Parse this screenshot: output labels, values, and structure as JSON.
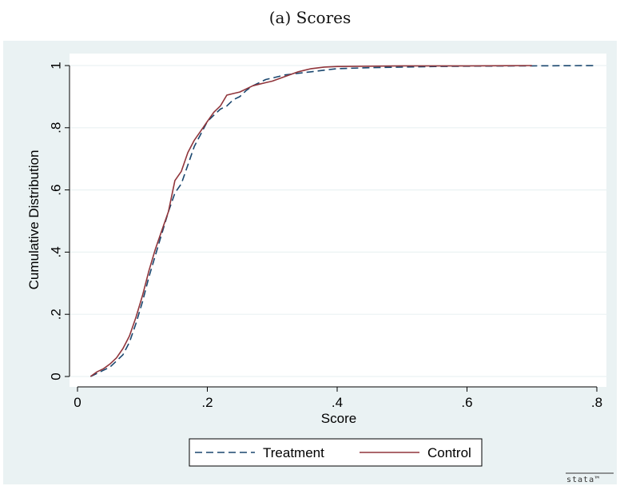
{
  "caption": "(a) Scores",
  "chart_data": {
    "type": "line",
    "xlabel": "Score",
    "ylabel": "Cumulative Distribution",
    "xlim": [
      0,
      0.8
    ],
    "ylim": [
      0,
      1
    ],
    "x_ticks": [
      0,
      0.2,
      0.4,
      0.6,
      0.8
    ],
    "x_tick_labels": [
      "0",
      ".2",
      ".4",
      ".6",
      ".8"
    ],
    "y_ticks": [
      0,
      0.2,
      0.4,
      0.6,
      0.8,
      1
    ],
    "y_tick_labels": [
      "0",
      ".2",
      ".4",
      ".6",
      ".8",
      "1"
    ],
    "grid": "horizontal",
    "legend_position": "bottom",
    "series": [
      {
        "name": "Treatment",
        "color": "#1a476f",
        "style": "dashed",
        "x": [
          0.02,
          0.03,
          0.04,
          0.05,
          0.06,
          0.07,
          0.08,
          0.09,
          0.1,
          0.11,
          0.12,
          0.13,
          0.14,
          0.15,
          0.16,
          0.17,
          0.18,
          0.19,
          0.2,
          0.21,
          0.22,
          0.23,
          0.24,
          0.25,
          0.26,
          0.27,
          0.28,
          0.29,
          0.3,
          0.32,
          0.34,
          0.36,
          0.38,
          0.4,
          0.45,
          0.5,
          0.55,
          0.6,
          0.7,
          0.8
        ],
        "y": [
          0.0,
          0.01,
          0.02,
          0.03,
          0.05,
          0.07,
          0.11,
          0.17,
          0.24,
          0.32,
          0.39,
          0.46,
          0.53,
          0.59,
          0.62,
          0.68,
          0.74,
          0.78,
          0.82,
          0.84,
          0.86,
          0.87,
          0.89,
          0.9,
          0.92,
          0.935,
          0.945,
          0.955,
          0.96,
          0.97,
          0.975,
          0.98,
          0.985,
          0.99,
          0.993,
          0.995,
          0.997,
          0.998,
          0.999,
          1.0
        ]
      },
      {
        "name": "Control",
        "color": "#90353b",
        "style": "solid",
        "x": [
          0.02,
          0.03,
          0.04,
          0.05,
          0.06,
          0.07,
          0.08,
          0.09,
          0.1,
          0.11,
          0.12,
          0.13,
          0.14,
          0.15,
          0.16,
          0.17,
          0.18,
          0.19,
          0.2,
          0.21,
          0.22,
          0.23,
          0.24,
          0.25,
          0.26,
          0.27,
          0.28,
          0.29,
          0.3,
          0.32,
          0.34,
          0.35,
          0.36,
          0.38,
          0.4,
          0.45,
          0.5,
          0.6,
          0.7
        ],
        "y": [
          0.0,
          0.015,
          0.025,
          0.04,
          0.06,
          0.09,
          0.13,
          0.19,
          0.26,
          0.34,
          0.41,
          0.47,
          0.53,
          0.63,
          0.66,
          0.72,
          0.76,
          0.79,
          0.82,
          0.85,
          0.87,
          0.905,
          0.91,
          0.915,
          0.925,
          0.935,
          0.94,
          0.945,
          0.95,
          0.965,
          0.98,
          0.985,
          0.99,
          0.995,
          0.997,
          0.998,
          0.999,
          0.999,
          1.0
        ]
      }
    ]
  },
  "watermark": "stata™"
}
